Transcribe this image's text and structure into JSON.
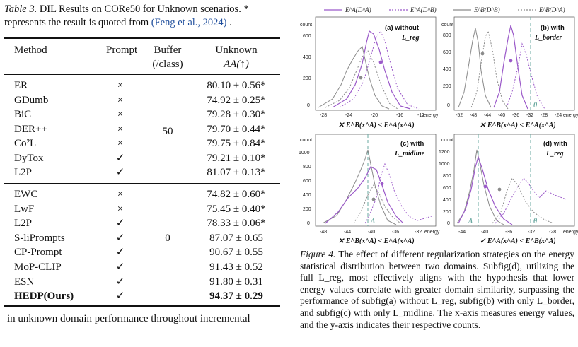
{
  "table": {
    "caption_label": "Table 3.",
    "caption_text": "DIL Results on CORe50 for Unknown scenarios.  * represents the result is quoted from ",
    "caption_cite": "(Feng et al., 2024)",
    "caption_end": " .",
    "headers": {
      "method": "Method",
      "prompt": "Prompt",
      "buffer_line1": "Buffer",
      "buffer_line2": "(/class)",
      "unknown_line1": "Unknown",
      "unknown_line2": "AA(↑)"
    },
    "group1_buffer": "50",
    "group2_buffer": "0",
    "group1": [
      {
        "method": "ER",
        "prompt": "×",
        "unknown": "80.10 ± 0.56*"
      },
      {
        "method": "GDumb",
        "prompt": "×",
        "unknown": "74.92 ± 0.25*"
      },
      {
        "method": "BiC",
        "prompt": "×",
        "unknown": "79.28 ± 0.30*"
      },
      {
        "method": "DER++",
        "prompt": "×",
        "unknown": "79.70 ± 0.44*"
      },
      {
        "method": "Co²L",
        "prompt": "×",
        "unknown": "79.75 ± 0.84*"
      },
      {
        "method": "DyTox",
        "prompt": "✓",
        "unknown": "79.21 ± 0.10*"
      },
      {
        "method": "L2P",
        "prompt": "✓",
        "unknown": "81.07 ± 0.13*"
      }
    ],
    "group2": [
      {
        "method": "EWC",
        "prompt": "×",
        "unknown": "74.82 ± 0.60*"
      },
      {
        "method": "LwF",
        "prompt": "×",
        "unknown": "75.45 ± 0.40*"
      },
      {
        "method": "L2P",
        "prompt": "✓",
        "unknown": "78.33 ± 0.06*"
      },
      {
        "method": "S-liPrompts",
        "prompt": "✓",
        "unknown": "87.07 ± 0.65"
      },
      {
        "method": "CP-Prompt",
        "prompt": "✓",
        "unknown": "90.67 ± 0.55"
      },
      {
        "method": "MoP-CLIP",
        "prompt": "✓",
        "unknown": "91.43 ± 0.52"
      },
      {
        "method": "ESN",
        "prompt": "✓",
        "unknown_underlined": "91.80",
        "unknown_rest": " ± 0.31"
      },
      {
        "method": "HEDP(Ours)",
        "prompt": "✓",
        "unknown": "94.37 ± 0.29"
      }
    ]
  },
  "footer_text": "in unknown domain performance throughout incremental",
  "figure": {
    "legend": [
      "E^A(D^A)",
      "E^A(D^B)",
      "E^B(D^B)",
      "E^B(D^A)"
    ],
    "colors": {
      "purple": "#9b59c9",
      "gray": "#8a8a8a",
      "teal": "#6aa8a0"
    },
    "axis_label": "energy",
    "count_label": "count",
    "panels": [
      {
        "label": "(a) without",
        "label2": "L_reg",
        "xticks": [
          "-28",
          "-24",
          "-20",
          "-16",
          "-12"
        ],
        "yticks": [
          "0",
          "200",
          "400",
          "600"
        ],
        "cond": "✕  E^B(x^A) < E^A(x^A)"
      },
      {
        "label": "(b) with",
        "label2": "L_border",
        "xticks": [
          "-52",
          "-48",
          "-44",
          "-40",
          "-36",
          "-32",
          "-28",
          "-24"
        ],
        "yticks": [
          "0",
          "200",
          "400",
          "600",
          "800"
        ],
        "cond": "✕  E^B(x^A) < E^A(x^A)",
        "theta": "θ"
      },
      {
        "label": "(c) with",
        "label2": "L_midline",
        "xticks": [
          "-48",
          "-44",
          "-40",
          "-36",
          "-32"
        ],
        "yticks": [
          "0",
          "200",
          "400",
          "600",
          "800",
          "1000"
        ],
        "cond": "✕  E^B(x^A) < E^A(x^A)",
        "delta": "Δ"
      },
      {
        "label": "(d) with",
        "label2": "L_reg",
        "xticks": [
          "-44",
          "-40",
          "-36",
          "-32",
          "-28"
        ],
        "yticks": [
          "0",
          "200",
          "400",
          "600",
          "800",
          "1000",
          "1200"
        ],
        "cond": "✓  E^A(x^A) < E^B(x^A)",
        "delta": "Δ",
        "theta": "θ"
      }
    ],
    "caption_label": "Figure 4.",
    "caption_text": "The effect of different regularization strategies on the energy statistical distribution between two domains. Subfig(d), utilizing the full L_reg, most effectively aligns with the hypothesis that lower energy values correlate with greater domain similarity, surpassing the performance of subfig(a) without L_reg, subfig(b) with only L_border, and subfig(c) with only L_midline. The x-axis measures energy values, and the y-axis indicates their respective counts."
  }
}
